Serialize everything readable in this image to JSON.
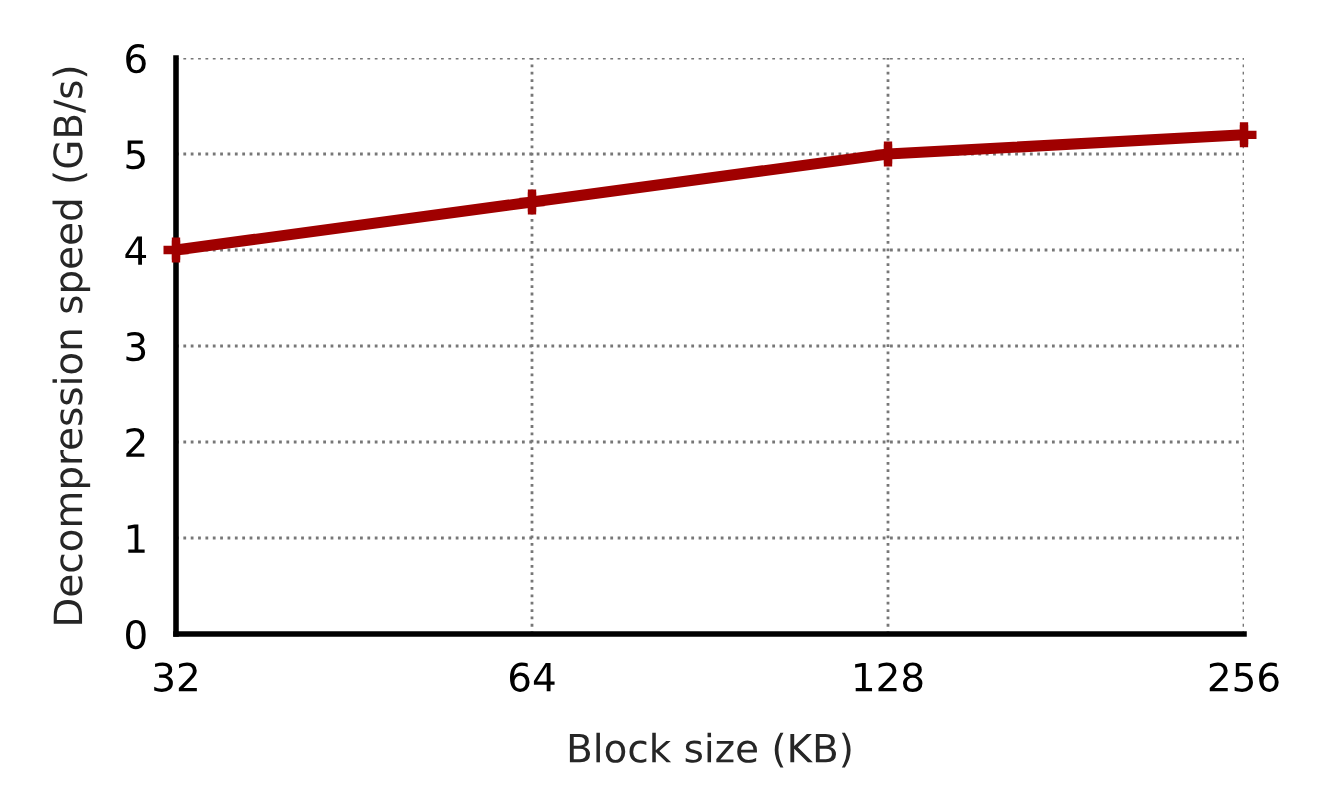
{
  "chart_data": {
    "type": "line",
    "xlabel": "Block size (KB)",
    "ylabel": "Decompression speed (GB/s)",
    "x": [
      32,
      64,
      128,
      256
    ],
    "series": [
      {
        "color": "#a00000",
        "values": [
          4.0,
          4.5,
          5.0,
          5.2
        ],
        "errors": [
          0.1,
          0.1,
          0.1,
          0.1
        ]
      }
    ],
    "log": "x",
    "xlim": [
      32,
      256
    ],
    "xticks": [
      32,
      64,
      128,
      256
    ],
    "ylim": [
      0,
      6
    ],
    "yticks": [
      0,
      1,
      2,
      3,
      4,
      5,
      6
    ],
    "grid": true,
    "marker": "cross",
    "line_style": "solid",
    "legend": false
  }
}
